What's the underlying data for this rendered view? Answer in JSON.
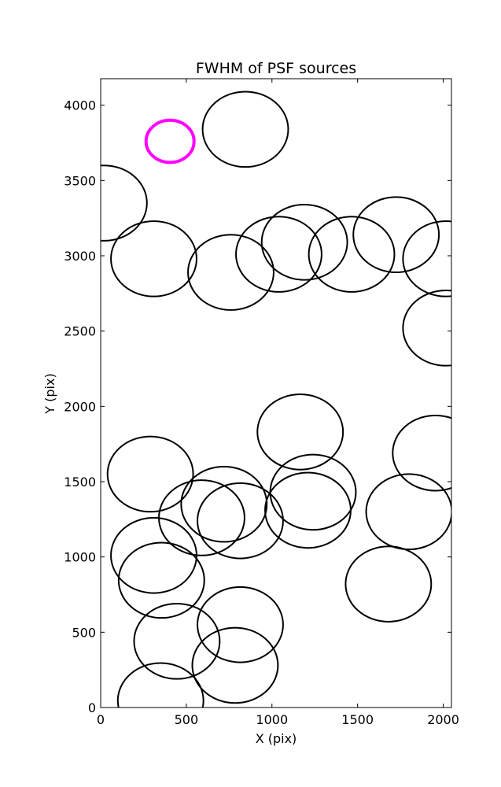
{
  "chart_data": {
    "type": "scatter",
    "title": "FWHM of PSF sources",
    "xlabel": "X (pix)",
    "ylabel": "Y (pix)",
    "xlim": [
      0,
      2048
    ],
    "ylim": [
      0,
      4176
    ],
    "xticks": [
      0,
      500,
      1000,
      1500,
      2000
    ],
    "yticks": [
      0,
      500,
      1000,
      1500,
      2000,
      2500,
      3000,
      3500,
      4000
    ],
    "grid": false,
    "marker": "circle (radius proportional to FWHM)",
    "series": [
      {
        "color": "#000000",
        "points": [
          {
            "x": 845,
            "y": 3840,
            "r": 250
          },
          {
            "x": 20,
            "y": 3350,
            "r": 250
          },
          {
            "x": 310,
            "y": 2980,
            "r": 250
          },
          {
            "x": 760,
            "y": 2890,
            "r": 250
          },
          {
            "x": 1040,
            "y": 3010,
            "r": 250
          },
          {
            "x": 1190,
            "y": 3090,
            "r": 250
          },
          {
            "x": 1465,
            "y": 3010,
            "r": 250
          },
          {
            "x": 1725,
            "y": 3140,
            "r": 250
          },
          {
            "x": 2015,
            "y": 2980,
            "r": 250
          },
          {
            "x": 2015,
            "y": 2520,
            "r": 250
          },
          {
            "x": 1165,
            "y": 1830,
            "r": 250
          },
          {
            "x": 1955,
            "y": 1690,
            "r": 250
          },
          {
            "x": 290,
            "y": 1550,
            "r": 250
          },
          {
            "x": 720,
            "y": 1350,
            "r": 250
          },
          {
            "x": 1240,
            "y": 1430,
            "r": 250
          },
          {
            "x": 1800,
            "y": 1300,
            "r": 250
          },
          {
            "x": 590,
            "y": 1260,
            "r": 250
          },
          {
            "x": 815,
            "y": 1240,
            "r": 250
          },
          {
            "x": 1210,
            "y": 1310,
            "r": 250
          },
          {
            "x": 310,
            "y": 1010,
            "r": 250
          },
          {
            "x": 355,
            "y": 845,
            "r": 250
          },
          {
            "x": 1680,
            "y": 820,
            "r": 250
          },
          {
            "x": 815,
            "y": 550,
            "r": 250
          },
          {
            "x": 445,
            "y": 440,
            "r": 250
          },
          {
            "x": 785,
            "y": 280,
            "r": 250
          },
          {
            "x": 350,
            "y": 45,
            "r": 250
          }
        ]
      },
      {
        "color": "#ff00ff",
        "points": [
          {
            "x": 405,
            "y": 3760,
            "r": 140
          }
        ]
      }
    ]
  }
}
